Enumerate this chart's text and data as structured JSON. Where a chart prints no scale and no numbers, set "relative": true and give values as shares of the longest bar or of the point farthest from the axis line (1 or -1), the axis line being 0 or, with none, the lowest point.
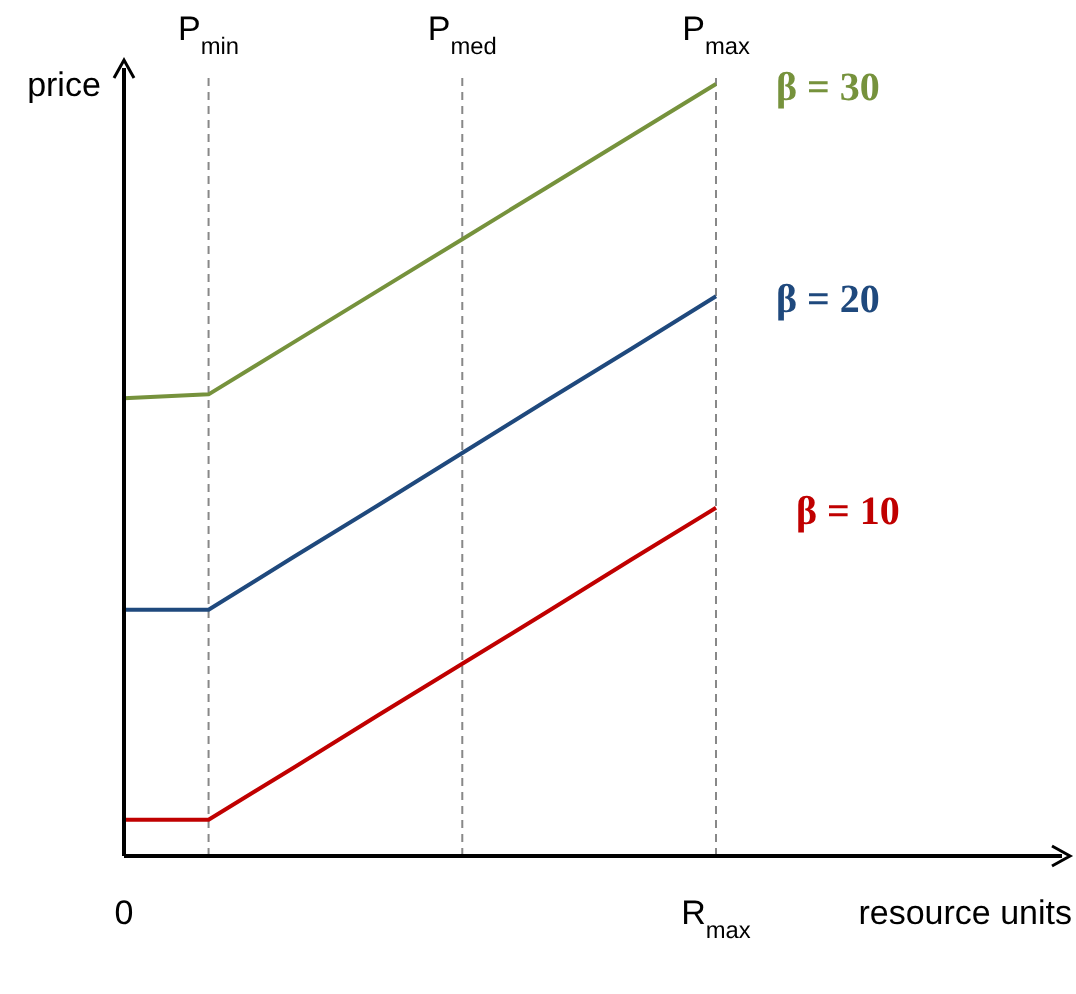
{
  "chart_data": {
    "type": "line",
    "relative": true,
    "xlabel": "resource units",
    "ylabel": "price",
    "categories": [
      "0",
      null,
      null,
      null,
      null,
      null,
      null,
      "R$_{max}$"
    ],
    "tick_labels": "x",
    "grid": "x",
    "legend": false,
    "marker": "none",
    "line_style": "solid",
    "series": [
      {
        "name": "β = 30",
        "color": "#76923c",
        "values": [
          0.593,
          0.598,
          0.665,
          0.732,
          0.799,
          0.866,
          0.933,
          1
        ]
      },
      {
        "name": "β = 20",
        "color": "#1f497d",
        "values": [
          0.319,
          0.319,
          0.387,
          0.454,
          0.522,
          0.59,
          0.657,
          0.725
        ]
      },
      {
        "name": "β = 10",
        "color": "#c00000",
        "values": [
          0.047,
          0.047,
          0.114,
          0.182,
          0.249,
          0.316,
          0.384,
          0.451
        ]
      }
    ],
    "annotations": [
      "P$_{min}$",
      "P$_{med}$",
      "P$_{max}$"
    ]
  }
}
